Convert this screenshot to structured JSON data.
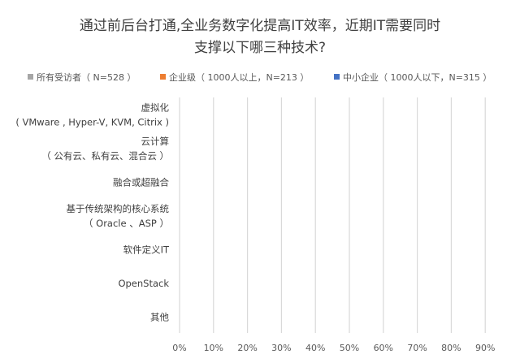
{
  "chart_data": {
    "type": "bar",
    "orientation": "horizontal",
    "title": [
      "通过前后台打通,全业务数字化提高IT效率，近期IT需要同时",
      "支撑以下哪三种技术?"
    ],
    "legend_position": "top",
    "categories": [
      [
        "虚拟化",
        "( VMware , Hyper-V, KVM, Citrix )"
      ],
      [
        "云计算",
        "（ 公有云、私有云、混合云 ）"
      ],
      [
        "融合或超融合"
      ],
      [
        "基于传统架构的核心系统",
        "（ Oracle 、ASP ）"
      ],
      [
        "软件定义IT"
      ],
      [
        "OpenStack"
      ],
      [
        "其他"
      ]
    ],
    "series": [
      {
        "name": "所有受访者（ N=528 ）",
        "color": "#a6a6a6",
        "values": [
          0,
          0,
          0,
          0,
          0,
          0,
          0
        ]
      },
      {
        "name": "企业级（ 1000人以上，N=213 ）",
        "color": "#ed7d31",
        "values": [
          0,
          0,
          0,
          0,
          0,
          0,
          0
        ]
      },
      {
        "name": "中小企业（ 1000人以下，N=315 ）",
        "color": "#4472c4",
        "values": [
          0,
          0,
          0,
          0,
          0,
          0,
          0
        ]
      }
    ],
    "x_ticks": [
      "0%",
      "10%",
      "20%",
      "30%",
      "40%",
      "50%",
      "60%",
      "70%",
      "80%",
      "90%"
    ],
    "xlim": [
      0,
      90
    ],
    "grid": true
  }
}
